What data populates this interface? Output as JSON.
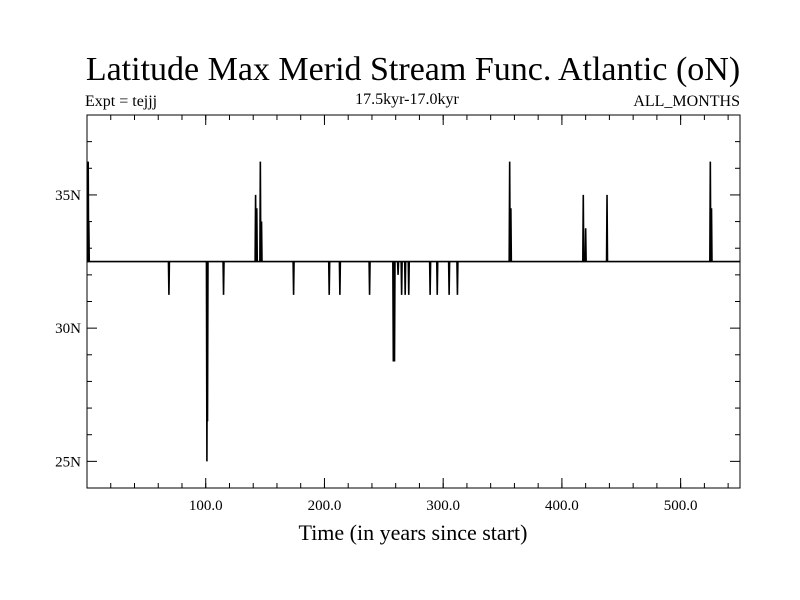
{
  "chart_data": {
    "type": "line",
    "title": "Latitude Max Merid Stream Func. Atlantic (oN)",
    "subtitle_left": "Expt = tejjj",
    "subtitle_center": "17.5kyr-17.0kyr",
    "subtitle_right": "ALL_MONTHS",
    "xlabel": "Time (in years since start)",
    "ylabel": "",
    "xlim": [
      0,
      550
    ],
    "ylim": [
      24,
      38
    ],
    "x_major_ticks": [
      100,
      200,
      300,
      400,
      500
    ],
    "x_tick_labels": [
      "100.0",
      "200.0",
      "300.0",
      "400.0",
      "500.0"
    ],
    "x_minor_step": 20,
    "y_major_ticks": [
      25,
      30,
      35
    ],
    "y_tick_labels": [
      "25N",
      "30N",
      "35N"
    ],
    "y_minor_step": 1,
    "baseline": 32.5,
    "series": [
      {
        "color": "#000000",
        "spikes": [
          {
            "x": 1,
            "y": 36.25
          },
          {
            "x": 1.5,
            "y": 34.0
          },
          {
            "x": 69,
            "y": 31.25
          },
          {
            "x": 101,
            "y": 25.0
          },
          {
            "x": 101.5,
            "y": 26.5
          },
          {
            "x": 115,
            "y": 31.25
          },
          {
            "x": 142,
            "y": 35.0
          },
          {
            "x": 143,
            "y": 34.5
          },
          {
            "x": 146,
            "y": 36.25
          },
          {
            "x": 147,
            "y": 34.0
          },
          {
            "x": 174,
            "y": 31.25
          },
          {
            "x": 204,
            "y": 31.25
          },
          {
            "x": 213,
            "y": 31.25
          },
          {
            "x": 238,
            "y": 31.25
          },
          {
            "x": 258,
            "y": 28.75
          },
          {
            "x": 259,
            "y": 28.75
          },
          {
            "x": 262,
            "y": 32.0
          },
          {
            "x": 265,
            "y": 31.25
          },
          {
            "x": 268,
            "y": 31.25
          },
          {
            "x": 271,
            "y": 31.25
          },
          {
            "x": 289,
            "y": 31.25
          },
          {
            "x": 295,
            "y": 31.25
          },
          {
            "x": 305,
            "y": 31.25
          },
          {
            "x": 312,
            "y": 31.25
          },
          {
            "x": 356,
            "y": 36.25
          },
          {
            "x": 357,
            "y": 34.5
          },
          {
            "x": 418,
            "y": 35.0
          },
          {
            "x": 420,
            "y": 33.75
          },
          {
            "x": 438,
            "y": 35.0
          },
          {
            "x": 525,
            "y": 36.25
          },
          {
            "x": 526,
            "y": 34.5
          }
        ]
      }
    ]
  }
}
